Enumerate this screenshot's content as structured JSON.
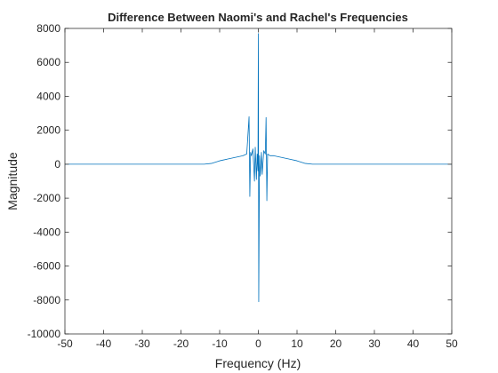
{
  "chart_data": {
    "type": "line",
    "title": "Difference Between Naomi's and Rachel's Frequencies",
    "xlabel": "Frequency (Hz)",
    "ylabel": "Magnitude",
    "xlim": [
      -50,
      50
    ],
    "ylim": [
      -10000,
      8000
    ],
    "xticks": [
      -50,
      -40,
      -30,
      -20,
      -10,
      0,
      10,
      20,
      30,
      40,
      50
    ],
    "yticks": [
      -10000,
      -8000,
      -6000,
      -4000,
      -2000,
      0,
      2000,
      4000,
      6000,
      8000
    ],
    "grid": false,
    "box": true,
    "line_color": "#0072BD",
    "series": [
      {
        "x": [
          -50,
          -14,
          -12,
          -10,
          -8,
          -6,
          -4,
          -3,
          -2.4,
          -2.2,
          -2.0,
          -1.8,
          -1.4,
          -1.0,
          -0.8,
          -0.5,
          -0.3,
          -0.1,
          0,
          0.1,
          0.3,
          0.5,
          0.8,
          1.0,
          1.4,
          1.8,
          2.0,
          2.2,
          2.4,
          3,
          4,
          6,
          8,
          10,
          12,
          14,
          50
        ],
        "y": [
          0,
          0,
          50,
          200,
          300,
          400,
          500,
          600,
          2800,
          -1900,
          700,
          500,
          900,
          -1000,
          1000,
          -900,
          600,
          -400,
          7700,
          -8100,
          500,
          -700,
          700,
          -600,
          800,
          600,
          2750,
          -2150,
          600,
          500,
          500,
          400,
          300,
          200,
          50,
          0,
          0
        ]
      }
    ]
  }
}
